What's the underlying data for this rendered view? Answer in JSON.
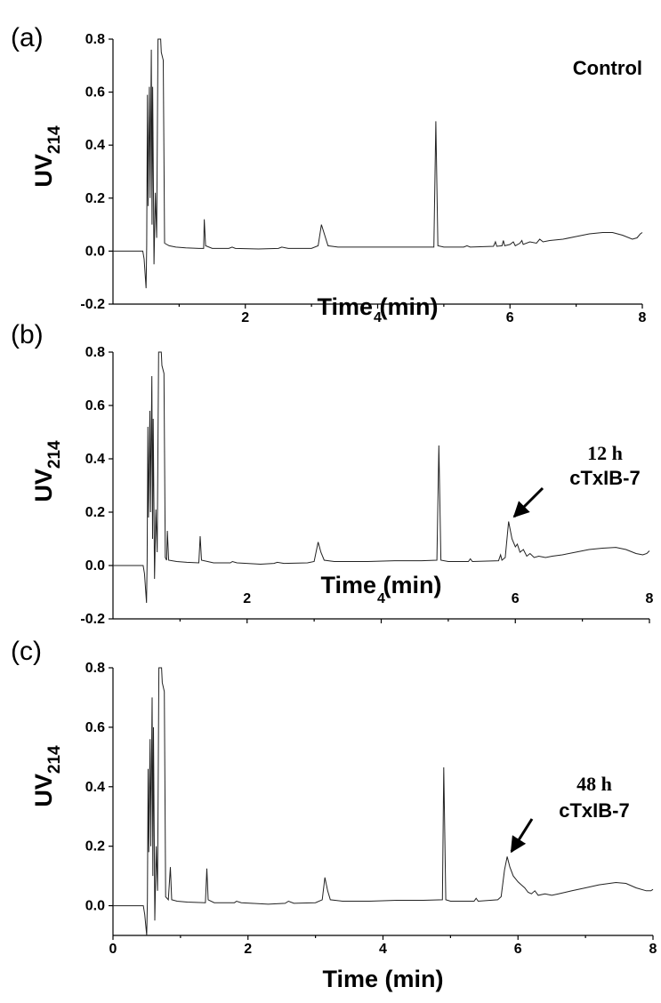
{
  "colors": {
    "trace": "#222222",
    "axis": "#000000",
    "background": "#ffffff"
  },
  "chart_data": [
    {
      "type": "line",
      "panel": "(a)",
      "xlabel": "Time (min)",
      "ylabel_main": "UV",
      "ylabel_sub": "214",
      "xlim": [
        0,
        8
      ],
      "ylim": [
        -0.2,
        0.8
      ],
      "xticks": [
        2,
        4,
        6,
        8
      ],
      "yticks": [
        -0.2,
        0.0,
        0.2,
        0.4,
        0.6,
        0.8
      ],
      "ytick_labels": [
        "-0.2",
        "0.0",
        "0.2",
        "0.4",
        "0.6",
        "0.8"
      ],
      "show_x_zero": false,
      "grid": false,
      "annotations": [
        {
          "lines": [
            "Control"
          ],
          "fonts": [
            "sans"
          ]
        }
      ],
      "series": [
        {
          "points": [
            [
              0.0,
              0.0
            ],
            [
              0.45,
              0.0
            ],
            [
              0.47,
              -0.03
            ],
            [
              0.5,
              -0.14
            ],
            [
              0.51,
              0.02
            ],
            [
              0.52,
              0.59
            ],
            [
              0.53,
              0.17
            ],
            [
              0.55,
              0.62
            ],
            [
              0.56,
              0.2
            ],
            [
              0.58,
              0.76
            ],
            [
              0.59,
              0.1
            ],
            [
              0.6,
              0.62
            ],
            [
              0.62,
              -0.05
            ],
            [
              0.64,
              0.22
            ],
            [
              0.66,
              0.05
            ],
            [
              0.68,
              0.8
            ],
            [
              0.72,
              0.8
            ],
            [
              0.73,
              0.75
            ],
            [
              0.76,
              0.72
            ],
            [
              0.78,
              0.03
            ],
            [
              0.85,
              0.02
            ],
            [
              0.95,
              0.015
            ],
            [
              1.1,
              0.012
            ],
            [
              1.3,
              0.01
            ],
            [
              1.37,
              0.01
            ],
            [
              1.38,
              0.12
            ],
            [
              1.4,
              0.02
            ],
            [
              1.5,
              0.01
            ],
            [
              1.75,
              0.01
            ],
            [
              1.8,
              0.015
            ],
            [
              1.85,
              0.01
            ],
            [
              2.2,
              0.008
            ],
            [
              2.5,
              0.01
            ],
            [
              2.55,
              0.015
            ],
            [
              2.65,
              0.01
            ],
            [
              3.0,
              0.01
            ],
            [
              3.1,
              0.02
            ],
            [
              3.15,
              0.1
            ],
            [
              3.2,
              0.06
            ],
            [
              3.25,
              0.02
            ],
            [
              3.4,
              0.015
            ],
            [
              3.8,
              0.015
            ],
            [
              4.2,
              0.015
            ],
            [
              4.6,
              0.015
            ],
            [
              4.85,
              0.015
            ],
            [
              4.88,
              0.49
            ],
            [
              4.91,
              0.02
            ],
            [
              5.0,
              0.015
            ],
            [
              5.3,
              0.015
            ],
            [
              5.35,
              0.02
            ],
            [
              5.4,
              0.015
            ],
            [
              5.75,
              0.018
            ],
            [
              5.78,
              0.035
            ],
            [
              5.8,
              0.018
            ],
            [
              5.88,
              0.02
            ],
            [
              5.9,
              0.04
            ],
            [
              5.92,
              0.02
            ],
            [
              6.0,
              0.025
            ],
            [
              6.05,
              0.035
            ],
            [
              6.08,
              0.02
            ],
            [
              6.15,
              0.03
            ],
            [
              6.18,
              0.04
            ],
            [
              6.2,
              0.025
            ],
            [
              6.3,
              0.035
            ],
            [
              6.4,
              0.03
            ],
            [
              6.45,
              0.045
            ],
            [
              6.5,
              0.035
            ],
            [
              6.6,
              0.04
            ],
            [
              6.8,
              0.045
            ],
            [
              7.0,
              0.055
            ],
            [
              7.2,
              0.065
            ],
            [
              7.4,
              0.07
            ],
            [
              7.55,
              0.07
            ],
            [
              7.7,
              0.06
            ],
            [
              7.85,
              0.045
            ],
            [
              7.92,
              0.05
            ],
            [
              7.97,
              0.065
            ],
            [
              8.0,
              0.07
            ]
          ]
        }
      ]
    },
    {
      "type": "line",
      "panel": "(b)",
      "xlabel": "Time (min)",
      "ylabel_main": "UV",
      "ylabel_sub": "214",
      "xlim": [
        0,
        8
      ],
      "ylim": [
        -0.2,
        0.8
      ],
      "xticks": [
        2,
        4,
        6,
        8
      ],
      "yticks": [
        -0.2,
        0.0,
        0.2,
        0.4,
        0.6,
        0.8
      ],
      "ytick_labels": [
        "-0.2",
        "0.0",
        "0.2",
        "0.4",
        "0.6",
        "0.8"
      ],
      "show_x_zero": false,
      "grid": false,
      "annotations": [
        {
          "lines": [
            "12 h",
            "cTxIB-7"
          ],
          "fonts": [
            "serif",
            "sans"
          ],
          "arrow_target": [
            5.93,
            0.17
          ]
        }
      ],
      "series": [
        {
          "points": [
            [
              0.0,
              0.0
            ],
            [
              0.45,
              0.0
            ],
            [
              0.47,
              -0.03
            ],
            [
              0.5,
              -0.14
            ],
            [
              0.51,
              0.02
            ],
            [
              0.52,
              0.52
            ],
            [
              0.53,
              0.18
            ],
            [
              0.55,
              0.58
            ],
            [
              0.56,
              0.2
            ],
            [
              0.58,
              0.71
            ],
            [
              0.59,
              0.1
            ],
            [
              0.6,
              0.55
            ],
            [
              0.62,
              -0.05
            ],
            [
              0.64,
              0.21
            ],
            [
              0.66,
              0.05
            ],
            [
              0.68,
              0.8
            ],
            [
              0.72,
              0.8
            ],
            [
              0.73,
              0.75
            ],
            [
              0.76,
              0.72
            ],
            [
              0.78,
              0.03
            ],
            [
              0.8,
              0.02
            ],
            [
              0.81,
              0.13
            ],
            [
              0.83,
              0.02
            ],
            [
              0.95,
              0.015
            ],
            [
              1.1,
              0.012
            ],
            [
              1.28,
              0.01
            ],
            [
              1.3,
              0.11
            ],
            [
              1.32,
              0.02
            ],
            [
              1.5,
              0.01
            ],
            [
              1.75,
              0.01
            ],
            [
              1.78,
              0.015
            ],
            [
              1.85,
              0.01
            ],
            [
              2.2,
              0.005
            ],
            [
              2.4,
              0.008
            ],
            [
              2.45,
              0.012
            ],
            [
              2.55,
              0.008
            ],
            [
              2.9,
              0.01
            ],
            [
              3.0,
              0.015
            ],
            [
              3.06,
              0.088
            ],
            [
              3.1,
              0.05
            ],
            [
              3.15,
              0.02
            ],
            [
              3.3,
              0.015
            ],
            [
              3.8,
              0.015
            ],
            [
              4.2,
              0.018
            ],
            [
              4.6,
              0.018
            ],
            [
              4.83,
              0.02
            ],
            [
              4.86,
              0.45
            ],
            [
              4.89,
              0.02
            ],
            [
              5.0,
              0.015
            ],
            [
              5.3,
              0.015
            ],
            [
              5.33,
              0.025
            ],
            [
              5.36,
              0.015
            ],
            [
              5.75,
              0.018
            ],
            [
              5.78,
              0.04
            ],
            [
              5.8,
              0.02
            ],
            [
              5.85,
              0.03
            ],
            [
              5.9,
              0.165
            ],
            [
              5.95,
              0.1
            ],
            [
              6.0,
              0.07
            ],
            [
              6.03,
              0.08
            ],
            [
              6.07,
              0.05
            ],
            [
              6.12,
              0.06
            ],
            [
              6.17,
              0.035
            ],
            [
              6.22,
              0.045
            ],
            [
              6.28,
              0.03
            ],
            [
              6.35,
              0.035
            ],
            [
              6.45,
              0.03
            ],
            [
              6.55,
              0.035
            ],
            [
              6.7,
              0.04
            ],
            [
              6.9,
              0.05
            ],
            [
              7.1,
              0.06
            ],
            [
              7.3,
              0.065
            ],
            [
              7.5,
              0.068
            ],
            [
              7.65,
              0.06
            ],
            [
              7.8,
              0.045
            ],
            [
              7.9,
              0.04
            ],
            [
              7.96,
              0.045
            ],
            [
              8.0,
              0.055
            ]
          ]
        }
      ]
    },
    {
      "type": "line",
      "panel": "(c)",
      "xlabel": "Time (min)",
      "ylabel_main": "UV",
      "ylabel_sub": "214",
      "xlim": [
        0,
        8
      ],
      "ylim": [
        -0.1,
        0.8
      ],
      "xticks": [
        0,
        2,
        4,
        6,
        8
      ],
      "yticks": [
        0.0,
        0.2,
        0.4,
        0.6,
        0.8
      ],
      "ytick_labels": [
        "0.0",
        "0.2",
        "0.4",
        "0.6",
        "0.8"
      ],
      "show_x_zero": true,
      "grid": false,
      "annotations": [
        {
          "lines": [
            "48 h",
            "cTxIB-7"
          ],
          "fonts": [
            "serif",
            "sans"
          ],
          "arrow_target": [
            5.85,
            0.17
          ]
        }
      ],
      "series": [
        {
          "points": [
            [
              0.0,
              0.0
            ],
            [
              0.45,
              0.0
            ],
            [
              0.47,
              -0.03
            ],
            [
              0.5,
              -0.1
            ],
            [
              0.51,
              0.02
            ],
            [
              0.52,
              0.46
            ],
            [
              0.53,
              0.18
            ],
            [
              0.55,
              0.56
            ],
            [
              0.56,
              0.2
            ],
            [
              0.58,
              0.7
            ],
            [
              0.59,
              0.1
            ],
            [
              0.6,
              0.6
            ],
            [
              0.62,
              -0.05
            ],
            [
              0.64,
              0.2
            ],
            [
              0.66,
              0.05
            ],
            [
              0.68,
              0.8
            ],
            [
              0.72,
              0.8
            ],
            [
              0.73,
              0.75
            ],
            [
              0.76,
              0.72
            ],
            [
              0.78,
              0.03
            ],
            [
              0.82,
              0.02
            ],
            [
              0.85,
              0.13
            ],
            [
              0.87,
              0.02
            ],
            [
              0.95,
              0.015
            ],
            [
              1.1,
              0.012
            ],
            [
              1.37,
              0.01
            ],
            [
              1.39,
              0.125
            ],
            [
              1.41,
              0.02
            ],
            [
              1.5,
              0.01
            ],
            [
              1.8,
              0.01
            ],
            [
              1.83,
              0.015
            ],
            [
              1.9,
              0.01
            ],
            [
              2.3,
              0.005
            ],
            [
              2.55,
              0.008
            ],
            [
              2.6,
              0.015
            ],
            [
              2.68,
              0.008
            ],
            [
              3.0,
              0.01
            ],
            [
              3.1,
              0.02
            ],
            [
              3.14,
              0.095
            ],
            [
              3.18,
              0.05
            ],
            [
              3.22,
              0.02
            ],
            [
              3.4,
              0.015
            ],
            [
              3.8,
              0.015
            ],
            [
              4.2,
              0.018
            ],
            [
              4.6,
              0.018
            ],
            [
              4.88,
              0.02
            ],
            [
              4.9,
              0.465
            ],
            [
              4.93,
              0.02
            ],
            [
              5.0,
              0.015
            ],
            [
              5.35,
              0.015
            ],
            [
              5.38,
              0.025
            ],
            [
              5.41,
              0.015
            ],
            [
              5.7,
              0.02
            ],
            [
              5.75,
              0.03
            ],
            [
              5.8,
              0.12
            ],
            [
              5.84,
              0.165
            ],
            [
              5.88,
              0.13
            ],
            [
              5.93,
              0.1
            ],
            [
              6.0,
              0.08
            ],
            [
              6.05,
              0.07
            ],
            [
              6.1,
              0.06
            ],
            [
              6.15,
              0.045
            ],
            [
              6.2,
              0.04
            ],
            [
              6.25,
              0.05
            ],
            [
              6.3,
              0.035
            ],
            [
              6.4,
              0.04
            ],
            [
              6.5,
              0.035
            ],
            [
              6.6,
              0.04
            ],
            [
              6.7,
              0.045
            ],
            [
              6.8,
              0.05
            ],
            [
              7.0,
              0.06
            ],
            [
              7.2,
              0.07
            ],
            [
              7.45,
              0.078
            ],
            [
              7.6,
              0.075
            ],
            [
              7.75,
              0.06
            ],
            [
              7.9,
              0.05
            ],
            [
              7.97,
              0.05
            ],
            [
              8.0,
              0.055
            ]
          ]
        }
      ]
    }
  ]
}
